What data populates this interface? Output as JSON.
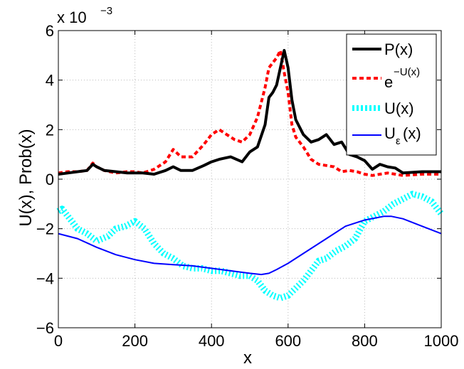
{
  "chart_data": {
    "type": "line",
    "xlabel": "x",
    "ylabel": "U(x),   Prob(x)",
    "xlim": [
      0,
      1000
    ],
    "ylim": [
      -6,
      6
    ],
    "xticks": [
      "0",
      "200",
      "400",
      "600",
      "800",
      "1000"
    ],
    "yticks": [
      "−6",
      "−4",
      "−2",
      "0",
      "2",
      "4",
      "6"
    ],
    "y_multiplier": "x 10",
    "y_multiplier_exponent": "−3",
    "grid": true,
    "legend_position": "top-right",
    "legend": [
      {
        "text": "P(x)",
        "sup": ""
      },
      {
        "text": "e",
        "sup": "−U(x)"
      },
      {
        "text": "U(x)",
        "sup": ""
      },
      {
        "text": "U",
        "sub": "ε",
        "tail": "(x)"
      }
    ],
    "series": [
      {
        "name": "P(x)",
        "color": "#000000",
        "style": "solid",
        "x": [
          0,
          25,
          50,
          75,
          90,
          100,
          120,
          150,
          180,
          200,
          220,
          250,
          280,
          300,
          320,
          350,
          380,
          400,
          420,
          450,
          480,
          500,
          520,
          540,
          550,
          560,
          570,
          580,
          590,
          600,
          610,
          620,
          640,
          660,
          680,
          700,
          720,
          740,
          760,
          780,
          800,
          820,
          840,
          860,
          880,
          900,
          950,
          1000
        ],
        "values": [
          0.2,
          0.25,
          0.3,
          0.35,
          0.6,
          0.5,
          0.35,
          0.3,
          0.25,
          0.25,
          0.25,
          0.2,
          0.35,
          0.5,
          0.35,
          0.35,
          0.55,
          0.7,
          0.8,
          0.9,
          0.7,
          1.1,
          1.3,
          2.2,
          3.3,
          3.5,
          3.8,
          4.5,
          5.2,
          4.5,
          3.2,
          2.4,
          1.8,
          1.5,
          1.6,
          1.8,
          1.4,
          1.5,
          1.0,
          0.9,
          0.75,
          0.4,
          0.6,
          0.5,
          0.45,
          0.25,
          0.3,
          0.3
        ]
      },
      {
        "name": "e^{-U(x)}",
        "color": "#ff0000",
        "style": "dashed",
        "x": [
          0,
          25,
          50,
          75,
          90,
          100,
          120,
          150,
          180,
          200,
          220,
          250,
          280,
          300,
          320,
          350,
          380,
          400,
          420,
          440,
          460,
          480,
          500,
          520,
          540,
          550,
          560,
          570,
          580,
          590,
          600,
          610,
          620,
          640,
          660,
          680,
          700,
          720,
          740,
          760,
          780,
          800,
          820,
          840,
          860,
          880,
          900,
          950,
          1000
        ],
        "values": [
          0.25,
          0.3,
          0.3,
          0.35,
          0.65,
          0.5,
          0.35,
          0.25,
          0.3,
          0.3,
          0.25,
          0.4,
          0.7,
          1.2,
          0.9,
          0.9,
          1.4,
          1.8,
          2.0,
          1.8,
          1.6,
          1.5,
          1.8,
          2.5,
          3.7,
          4.5,
          4.7,
          4.9,
          5.2,
          4.3,
          3.5,
          2.2,
          1.7,
          1.3,
          0.8,
          0.6,
          0.55,
          0.5,
          0.3,
          0.35,
          0.3,
          0.2,
          0.15,
          0.2,
          0.25,
          0.2,
          0.15,
          0.2,
          0.2
        ]
      },
      {
        "name": "U(x)",
        "color": "#00ffff",
        "style": "thick-dotted",
        "x": [
          0,
          10,
          25,
          50,
          75,
          100,
          130,
          150,
          175,
          200,
          225,
          250,
          275,
          300,
          325,
          350,
          375,
          400,
          425,
          450,
          475,
          500,
          520,
          540,
          560,
          580,
          600,
          620,
          640,
          660,
          680,
          700,
          725,
          750,
          775,
          800,
          825,
          850,
          875,
          900,
          925,
          950,
          975,
          1000
        ],
        "values": [
          -1.3,
          -1.2,
          -1.5,
          -2.0,
          -2.2,
          -2.5,
          -2.3,
          -2.0,
          -1.9,
          -1.7,
          -2.0,
          -2.6,
          -3.0,
          -3.2,
          -3.5,
          -3.6,
          -3.6,
          -3.7,
          -3.7,
          -3.8,
          -3.9,
          -3.9,
          -4.1,
          -4.5,
          -4.7,
          -4.8,
          -4.7,
          -4.4,
          -4.1,
          -3.7,
          -3.3,
          -3.2,
          -2.9,
          -2.7,
          -2.4,
          -1.7,
          -1.5,
          -1.3,
          -1.0,
          -0.8,
          -0.6,
          -0.7,
          -0.9,
          -1.4
        ]
      },
      {
        "name": "U_ε(x)",
        "color": "#0000ff",
        "style": "solid-thin",
        "x": [
          0,
          50,
          100,
          150,
          200,
          250,
          300,
          350,
          400,
          450,
          500,
          530,
          550,
          570,
          600,
          650,
          700,
          750,
          800,
          850,
          870,
          900,
          950,
          1000
        ],
        "values": [
          -2.2,
          -2.4,
          -2.75,
          -3.05,
          -3.25,
          -3.4,
          -3.45,
          -3.5,
          -3.6,
          -3.7,
          -3.8,
          -3.85,
          -3.8,
          -3.65,
          -3.4,
          -2.9,
          -2.4,
          -1.9,
          -1.65,
          -1.5,
          -1.5,
          -1.6,
          -1.9,
          -2.2
        ]
      }
    ]
  }
}
